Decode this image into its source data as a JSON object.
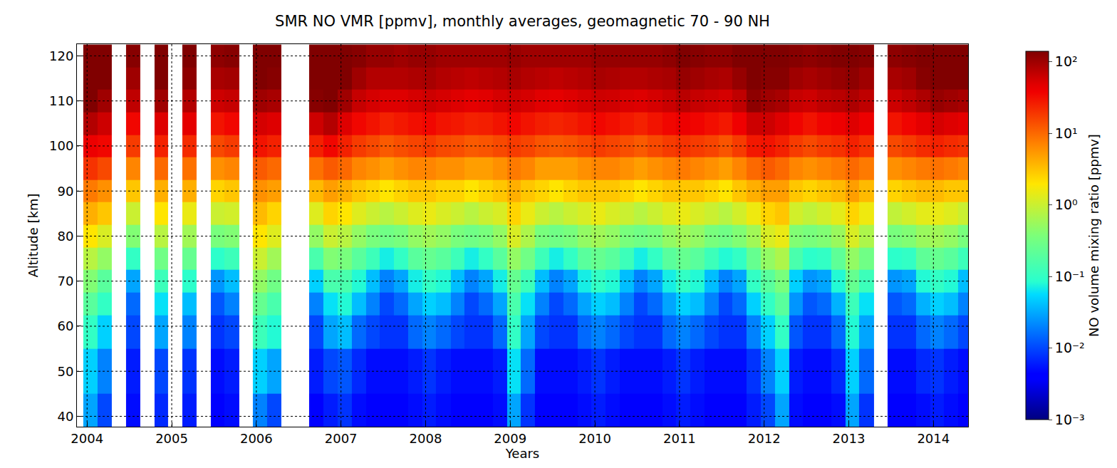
{
  "chart_data": {
    "type": "heatmap",
    "title": "SMR NO VMR [ppmv], monthly averages, geomagnetic 70 - 90 NH",
    "x_label": "Years",
    "y_label": "Altitude [km]",
    "xlim": [
      2003.88,
      2014.41
    ],
    "ylim": [
      37.7,
      122.6
    ],
    "xticks": [
      2004,
      2005,
      2006,
      2007,
      2008,
      2009,
      2010,
      2011,
      2012,
      2013,
      2014
    ],
    "yticks": [
      40,
      50,
      60,
      70,
      80,
      90,
      100,
      110,
      120
    ],
    "grid": true,
    "y": [
      40,
      50,
      60,
      65,
      70,
      75,
      80,
      85,
      90,
      95,
      100,
      105,
      110,
      115,
      120
    ],
    "x": [
      2004.04,
      2004.21,
      2004.38,
      2004.54,
      2004.71,
      2004.88,
      2005.04,
      2005.21,
      2005.38,
      2005.54,
      2005.71,
      2005.88,
      2006.04,
      2006.21,
      2006.38,
      2006.54,
      2006.71,
      2006.88,
      2007.04,
      2007.21,
      2007.38,
      2007.54,
      2007.71,
      2007.88,
      2008.04,
      2008.21,
      2008.38,
      2008.54,
      2008.71,
      2008.88,
      2009.04,
      2009.21,
      2009.38,
      2009.54,
      2009.71,
      2009.88,
      2010.04,
      2010.21,
      2010.38,
      2010.54,
      2010.71,
      2010.88,
      2011.04,
      2011.21,
      2011.38,
      2011.54,
      2011.71,
      2011.88,
      2012.04,
      2012.21,
      2012.38,
      2012.54,
      2012.71,
      2012.88,
      2013.04,
      2013.21,
      2013.38,
      2013.54,
      2013.71,
      2013.88,
      2014.04,
      2014.21,
      2014.38
    ],
    "cells": [
      [
        0.03,
        0.05,
        0.1,
        0.2,
        0.4,
        0.8,
        2,
        4,
        8,
        20,
        40,
        80,
        150,
        200,
        200
      ],
      [
        0.01,
        0.02,
        0.05,
        0.1,
        0.2,
        0.5,
        1.2,
        3,
        6,
        15,
        35,
        60,
        100,
        150,
        180
      ],
      null,
      [
        0.005,
        0.006,
        0.01,
        0.015,
        0.03,
        0.1,
        0.4,
        1,
        3,
        7,
        18,
        35,
        70,
        100,
        130
      ],
      null,
      [
        0.007,
        0.01,
        0.03,
        0.06,
        0.12,
        0.3,
        0.8,
        2,
        4,
        10,
        25,
        50,
        100,
        150,
        180
      ],
      null,
      [
        0.006,
        0.008,
        0.02,
        0.04,
        0.09,
        0.25,
        0.6,
        1.5,
        4,
        9,
        22,
        45,
        80,
        120,
        150
      ],
      null,
      [
        0.004,
        0.005,
        0.008,
        0.012,
        0.025,
        0.09,
        0.35,
        1,
        2.5,
        6,
        15,
        30,
        60,
        90,
        120
      ],
      [
        0.005,
        0.006,
        0.01,
        0.02,
        0.04,
        0.12,
        0.4,
        1.1,
        3,
        7,
        18,
        35,
        65,
        95,
        130
      ],
      null,
      [
        0.02,
        0.05,
        0.12,
        0.25,
        0.5,
        1,
        2,
        3.5,
        6,
        12,
        30,
        55,
        100,
        150,
        180
      ],
      [
        0.01,
        0.03,
        0.08,
        0.15,
        0.3,
        0.6,
        1.3,
        2.5,
        5,
        10,
        25,
        50,
        90,
        130,
        160
      ],
      null,
      null,
      [
        0.004,
        0.006,
        0.01,
        0.02,
        0.05,
        0.15,
        0.5,
        1.3,
        3.5,
        9,
        25,
        60,
        130,
        200,
        220
      ],
      [
        0.006,
        0.01,
        0.03,
        0.06,
        0.15,
        0.4,
        1,
        2.5,
        5,
        12,
        35,
        80,
        160,
        220,
        230
      ],
      [
        0.008,
        0.012,
        0.04,
        0.08,
        0.15,
        0.35,
        0.8,
        2,
        4,
        10,
        25,
        50,
        100,
        150,
        180
      ],
      [
        0.005,
        0.007,
        0.015,
        0.04,
        0.08,
        0.2,
        0.5,
        1.3,
        3,
        7,
        18,
        35,
        65,
        100,
        130
      ],
      [
        0.004,
        0.005,
        0.01,
        0.02,
        0.04,
        0.12,
        0.35,
        1,
        2.5,
        6,
        15,
        30,
        55,
        80,
        110
      ],
      [
        0.004,
        0.005,
        0.008,
        0.01,
        0.02,
        0.07,
        0.3,
        0.8,
        2,
        5,
        12,
        25,
        50,
        80,
        110
      ],
      [
        0.004,
        0.005,
        0.008,
        0.015,
        0.03,
        0.1,
        0.35,
        1,
        2.5,
        6,
        14,
        28,
        50,
        80,
        100
      ],
      [
        0.005,
        0.006,
        0.015,
        0.03,
        0.07,
        0.2,
        0.5,
        1.3,
        3,
        7,
        16,
        32,
        55,
        85,
        110
      ],
      [
        0.006,
        0.008,
        0.02,
        0.05,
        0.1,
        0.25,
        0.6,
        1.5,
        3,
        7,
        18,
        35,
        60,
        90,
        110
      ],
      [
        0.005,
        0.006,
        0.015,
        0.04,
        0.08,
        0.2,
        0.5,
        1.2,
        2.5,
        6,
        15,
        30,
        55,
        80,
        100
      ],
      [
        0.004,
        0.005,
        0.01,
        0.02,
        0.04,
        0.12,
        0.35,
        1,
        2.5,
        6,
        14,
        28,
        50,
        75,
        100
      ],
      [
        0.004,
        0.005,
        0.008,
        0.01,
        0.02,
        0.07,
        0.3,
        0.8,
        2,
        5,
        12,
        25,
        45,
        70,
        100
      ],
      [
        0.004,
        0.005,
        0.008,
        0.015,
        0.03,
        0.1,
        0.35,
        1,
        2.5,
        5,
        13,
        26,
        48,
        75,
        100
      ],
      [
        0.005,
        0.006,
        0.015,
        0.03,
        0.07,
        0.2,
        0.5,
        1.2,
        3,
        6,
        15,
        30,
        55,
        80,
        100
      ],
      [
        0.03,
        0.06,
        0.1,
        0.15,
        0.25,
        0.5,
        1.2,
        2.5,
        4,
        8,
        18,
        35,
        60,
        90,
        110
      ],
      [
        0.008,
        0.015,
        0.03,
        0.06,
        0.12,
        0.3,
        0.7,
        1.5,
        3,
        7,
        16,
        30,
        55,
        80,
        100
      ],
      [
        0.004,
        0.005,
        0.01,
        0.02,
        0.04,
        0.12,
        0.35,
        1,
        2.5,
        5,
        13,
        26,
        48,
        75,
        100
      ],
      [
        0.004,
        0.005,
        0.008,
        0.01,
        0.02,
        0.07,
        0.3,
        0.8,
        2,
        5,
        12,
        24,
        45,
        70,
        100
      ],
      [
        0.004,
        0.005,
        0.008,
        0.015,
        0.03,
        0.1,
        0.35,
        1,
        2.5,
        5,
        13,
        26,
        50,
        75,
        100
      ],
      [
        0.005,
        0.006,
        0.015,
        0.03,
        0.07,
        0.2,
        0.5,
        1.2,
        3,
        6,
        15,
        30,
        55,
        80,
        100
      ],
      [
        0.006,
        0.008,
        0.02,
        0.05,
        0.1,
        0.25,
        0.6,
        1.5,
        3,
        7,
        18,
        35,
        60,
        90,
        110
      ],
      [
        0.005,
        0.006,
        0.015,
        0.04,
        0.08,
        0.2,
        0.5,
        1.2,
        3,
        7,
        16,
        32,
        58,
        85,
        110
      ],
      [
        0.004,
        0.005,
        0.01,
        0.02,
        0.04,
        0.12,
        0.35,
        1,
        2.5,
        6,
        14,
        28,
        52,
        80,
        110
      ],
      [
        0.004,
        0.005,
        0.008,
        0.01,
        0.02,
        0.07,
        0.3,
        0.8,
        2,
        5,
        12,
        25,
        50,
        80,
        110
      ],
      [
        0.004,
        0.005,
        0.008,
        0.015,
        0.03,
        0.1,
        0.35,
        1,
        2.5,
        6,
        15,
        30,
        55,
        85,
        110
      ],
      [
        0.005,
        0.006,
        0.015,
        0.03,
        0.07,
        0.2,
        0.5,
        1.3,
        3,
        7,
        18,
        35,
        62,
        90,
        120
      ],
      [
        0.006,
        0.008,
        0.02,
        0.05,
        0.1,
        0.25,
        0.6,
        1.5,
        3,
        8,
        20,
        40,
        75,
        110,
        150
      ],
      [
        0.005,
        0.006,
        0.015,
        0.04,
        0.08,
        0.2,
        0.5,
        1.2,
        3,
        7,
        18,
        36,
        65,
        100,
        130
      ],
      [
        0.004,
        0.005,
        0.01,
        0.02,
        0.04,
        0.12,
        0.35,
        1,
        2.5,
        6,
        16,
        32,
        60,
        90,
        120
      ],
      [
        0.004,
        0.005,
        0.008,
        0.01,
        0.02,
        0.08,
        0.3,
        0.8,
        2,
        5,
        13,
        28,
        55,
        85,
        120
      ],
      [
        0.004,
        0.005,
        0.008,
        0.015,
        0.03,
        0.1,
        0.4,
        1.1,
        3,
        7,
        18,
        38,
        70,
        110,
        150
      ],
      [
        0.006,
        0.008,
        0.02,
        0.05,
        0.1,
        0.25,
        0.6,
        1.6,
        4,
        10,
        28,
        60,
        120,
        180,
        200
      ],
      [
        0.01,
        0.02,
        0.05,
        0.1,
        0.2,
        0.5,
        1.2,
        2.5,
        5,
        12,
        30,
        60,
        100,
        130,
        150
      ],
      [
        0.03,
        0.05,
        0.1,
        0.2,
        0.35,
        0.7,
        1.5,
        3,
        5,
        10,
        25,
        50,
        90,
        130,
        160
      ],
      [
        0.005,
        0.006,
        0.012,
        0.025,
        0.05,
        0.15,
        0.4,
        1.1,
        3,
        7,
        18,
        36,
        65,
        100,
        130
      ],
      [
        0.004,
        0.005,
        0.008,
        0.012,
        0.025,
        0.09,
        0.35,
        0.9,
        2.5,
        6,
        15,
        30,
        60,
        90,
        120
      ],
      [
        0.004,
        0.005,
        0.008,
        0.015,
        0.03,
        0.1,
        0.4,
        1.1,
        3,
        7,
        18,
        36,
        70,
        100,
        130
      ],
      [
        0.005,
        0.007,
        0.015,
        0.035,
        0.08,
        0.22,
        0.55,
        1.4,
        3.5,
        8,
        20,
        40,
        75,
        110,
        150
      ],
      [
        0.03,
        0.05,
        0.08,
        0.12,
        0.25,
        0.5,
        1.2,
        2.5,
        5,
        10,
        25,
        50,
        85,
        120,
        150
      ],
      [
        0.008,
        0.015,
        0.03,
        0.06,
        0.12,
        0.3,
        0.7,
        1.6,
        3.5,
        8,
        20,
        40,
        70,
        100,
        130
      ],
      null,
      [
        0.004,
        0.005,
        0.008,
        0.012,
        0.025,
        0.09,
        0.35,
        0.9,
        2.5,
        6,
        15,
        30,
        60,
        90,
        120
      ],
      [
        0.004,
        0.005,
        0.008,
        0.015,
        0.03,
        0.1,
        0.4,
        1.1,
        3,
        7,
        18,
        36,
        70,
        100,
        130
      ],
      [
        0.005,
        0.007,
        0.015,
        0.035,
        0.08,
        0.22,
        0.55,
        1.4,
        3.5,
        8,
        22,
        45,
        85,
        130,
        160
      ],
      [
        0.006,
        0.008,
        0.02,
        0.05,
        0.1,
        0.25,
        0.6,
        1.5,
        3.5,
        9,
        25,
        55,
        110,
        170,
        200
      ],
      [
        0.005,
        0.006,
        0.015,
        0.04,
        0.08,
        0.2,
        0.5,
        1.3,
        3,
        8,
        22,
        50,
        100,
        160,
        190
      ],
      [
        0.004,
        0.005,
        0.01,
        0.02,
        0.04,
        0.12,
        0.35,
        1,
        3,
        7,
        20,
        45,
        90,
        140,
        180
      ]
    ],
    "colorbar": {
      "label": "NO volume mixing ratio [ppmv]",
      "log": true,
      "range": [
        0.001,
        140
      ],
      "ticks": [
        {
          "value": 0.001,
          "label": "10⁻³"
        },
        {
          "value": 0.01,
          "label": "10⁻²"
        },
        {
          "value": 0.1,
          "label": "10⁻¹"
        },
        {
          "value": 1,
          "label": "10⁰"
        },
        {
          "value": 10,
          "label": "10¹"
        },
        {
          "value": 100,
          "label": "10²"
        }
      ]
    }
  }
}
